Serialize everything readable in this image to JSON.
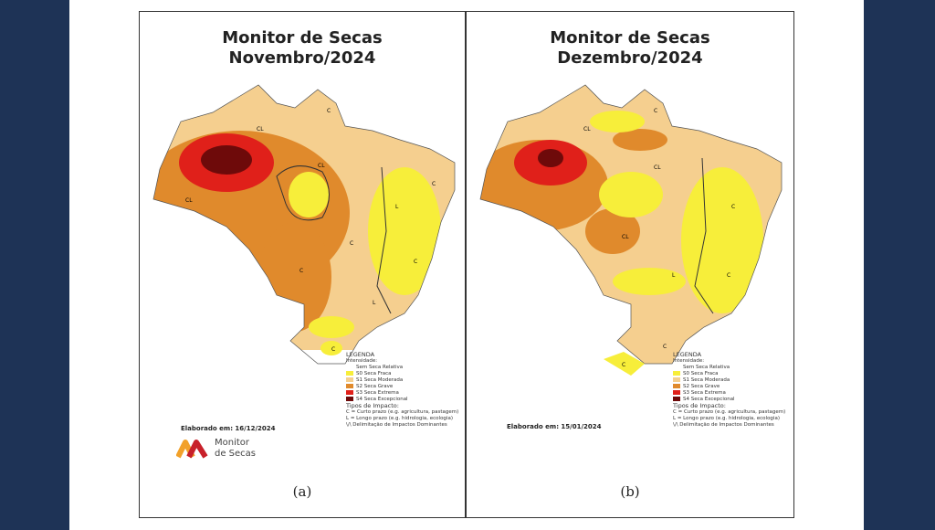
{
  "colors": {
    "background": "#1e3356",
    "s0": "#f7ee3a",
    "s1": "#f5cf8f",
    "s2": "#e08a2c",
    "s3": "#e0201a",
    "s4": "#6e0a0a",
    "none": "#ffffff"
  },
  "legend": {
    "title": "LEGENDA",
    "intensity_label": "Intensidade:",
    "items": [
      {
        "label": "Sem Seca Relativa",
        "color": "#ffffff"
      },
      {
        "label": "S0 Seca Fraca",
        "color": "#f7ee3a"
      },
      {
        "label": "S1 Seca Moderada",
        "color": "#f5cf8f"
      },
      {
        "label": "S2 Seca Grave",
        "color": "#e08a2c"
      },
      {
        "label": "S3 Seca Extrema",
        "color": "#e0201a"
      },
      {
        "label": "S4 Seca Excepcional",
        "color": "#6e0a0a"
      }
    ],
    "impact_label": "Tipos de Impacto:",
    "impact_c": "C = Curto prazo (e.g. agricultura, pastagem)",
    "impact_l": "L = Longo prazo (e.g. hidrologia, ecologia)",
    "delimitation": "\\/\\ Delimitação de Impactos Dominantes"
  },
  "panels": [
    {
      "title_line1": "Monitor de Secas",
      "title_line2": "Novembro/2024",
      "elaborado": "Elaborado em: 16/12/2024",
      "caption": "(a)",
      "logo_line1": "Monitor",
      "logo_line2": "de Secas",
      "impact_tags": [
        "CL",
        "C",
        "CL",
        "L",
        "C",
        "C",
        "C",
        "CL",
        "L",
        "C",
        "C"
      ]
    },
    {
      "title_line1": "Monitor de Secas",
      "title_line2": "Dezembro/2024",
      "elaborado": "Elaborado em: 15/01/2024",
      "caption": "(b)",
      "impact_tags": [
        "CL",
        "C",
        "CL",
        "CL",
        "L",
        "C",
        "C",
        "C",
        "C"
      ]
    }
  ]
}
